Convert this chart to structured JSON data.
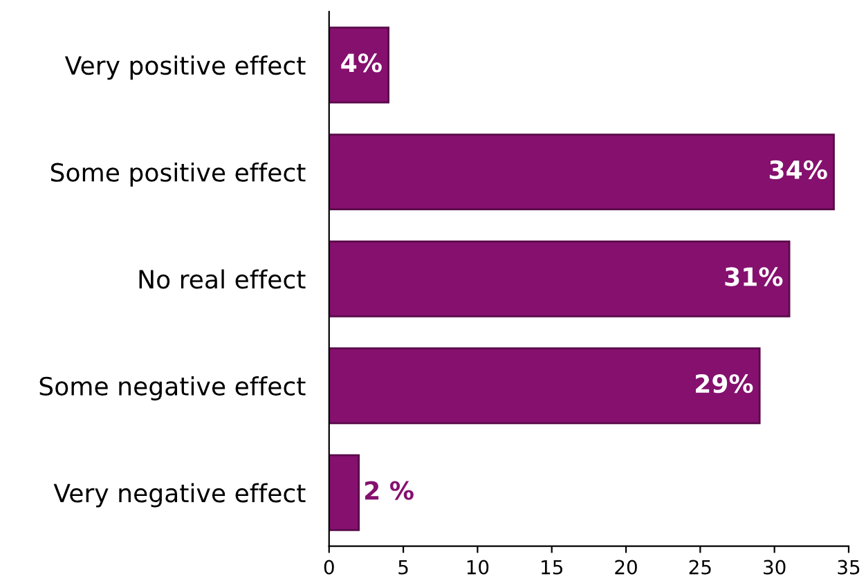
{
  "chart_data": {
    "type": "bar",
    "orientation": "horizontal",
    "categories": [
      "Very positive effect",
      "Some positive effect",
      "No real effect",
      "Some negative effect",
      "Very negative effect"
    ],
    "values": [
      4,
      34,
      31,
      29,
      2
    ],
    "value_labels": [
      "4%",
      "34%",
      "31%",
      "29%",
      "2 %"
    ],
    "color": "#85106e",
    "xlim": [
      0,
      35
    ],
    "xticks": [
      0,
      5,
      10,
      15,
      20,
      25,
      30,
      35
    ],
    "grid": false
  }
}
